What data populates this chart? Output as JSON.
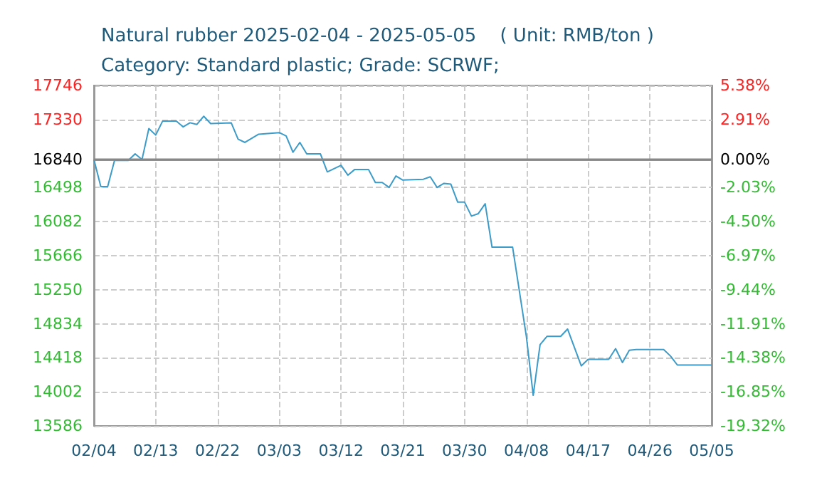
{
  "chart_data": {
    "type": "line",
    "title": "Natural rubber 2025-02-04 - 2025-05-05    ( Unit: RMB/ton )",
    "subtitle": "Category: Standard plastic; Grade: SCRWF;",
    "x": [
      "2025-02-04",
      "2025-02-05",
      "2025-02-06",
      "2025-02-07",
      "2025-02-09",
      "2025-02-10",
      "2025-02-11",
      "2025-02-12",
      "2025-02-13",
      "2025-02-14",
      "2025-02-16",
      "2025-02-17",
      "2025-02-18",
      "2025-02-19",
      "2025-02-20",
      "2025-02-21",
      "2025-02-24",
      "2025-02-25",
      "2025-02-26",
      "2025-02-28",
      "2025-03-03",
      "2025-03-04",
      "2025-03-05",
      "2025-03-06",
      "2025-03-07",
      "2025-03-09",
      "2025-03-10",
      "2025-03-12",
      "2025-03-13",
      "2025-03-14",
      "2025-03-16",
      "2025-03-17",
      "2025-03-18",
      "2025-03-19",
      "2025-03-20",
      "2025-03-21",
      "2025-03-24",
      "2025-03-25",
      "2025-03-26",
      "2025-03-27",
      "2025-03-28",
      "2025-03-29",
      "2025-03-30",
      "2025-03-31",
      "2025-04-01",
      "2025-04-02",
      "2025-04-03",
      "2025-04-06",
      "2025-04-08",
      "2025-04-09",
      "2025-04-10",
      "2025-04-11",
      "2025-04-13",
      "2025-04-14",
      "2025-04-16",
      "2025-04-17",
      "2025-04-20",
      "2025-04-21",
      "2025-04-22",
      "2025-04-23",
      "2025-04-24",
      "2025-04-28",
      "2025-04-29",
      "2025-04-30",
      "2025-05-05"
    ],
    "series": [
      {
        "color": "#3d9bc8",
        "values": [
          16840,
          16510,
          16510,
          16830,
          16830,
          16910,
          16840,
          17220,
          17140,
          17310,
          17310,
          17240,
          17290,
          17270,
          17370,
          17280,
          17290,
          17090,
          17050,
          17150,
          17170,
          17130,
          16930,
          17050,
          16910,
          16910,
          16690,
          16770,
          16650,
          16720,
          16720,
          16560,
          16560,
          16500,
          16640,
          16590,
          16600,
          16630,
          16500,
          16550,
          16540,
          16320,
          16320,
          16150,
          16180,
          16300,
          15770,
          15770,
          14680,
          13960,
          14580,
          14680,
          14680,
          14770,
          14320,
          14400,
          14400,
          14530,
          14360,
          14510,
          14520,
          14520,
          14440,
          14330,
          14330
        ]
      }
    ],
    "xlim": [
      "2025-02-04",
      "2025-05-05"
    ],
    "xticks": [
      {
        "value": "2025-02-04",
        "label": "02/04"
      },
      {
        "value": "2025-02-13",
        "label": "02/13"
      },
      {
        "value": "2025-02-22",
        "label": "02/22"
      },
      {
        "value": "2025-03-03",
        "label": "03/03"
      },
      {
        "value": "2025-03-12",
        "label": "03/12"
      },
      {
        "value": "2025-03-21",
        "label": "03/21"
      },
      {
        "value": "2025-03-30",
        "label": "03/30"
      },
      {
        "value": "2025-04-08",
        "label": "04/08"
      },
      {
        "value": "2025-04-17",
        "label": "04/17"
      },
      {
        "value": "2025-04-26",
        "label": "04/26"
      },
      {
        "value": "2025-05-05",
        "label": "05/05"
      }
    ],
    "ylim": [
      13586,
      17746
    ],
    "yticks": [
      13586,
      14002,
      14418,
      14834,
      15250,
      15666,
      16082,
      16498,
      16840,
      17330,
      17746
    ],
    "y2lim": [
      -19.32,
      5.38
    ],
    "y2ticks": [
      {
        "value": -19.32,
        "label": "-19.32%"
      },
      {
        "value": -16.85,
        "label": "-16.85%"
      },
      {
        "value": -14.38,
        "label": "-14.38%"
      },
      {
        "value": -11.91,
        "label": "-11.91%"
      },
      {
        "value": -9.44,
        "label": "-9.44%"
      },
      {
        "value": -6.97,
        "label": "-6.97%"
      },
      {
        "value": -4.5,
        "label": "-4.50%"
      },
      {
        "value": -2.03,
        "label": "-2.03%"
      },
      {
        "value": 0,
        "label": "0.00%"
      },
      {
        "value": 2.91,
        "label": "2.91%"
      },
      {
        "value": 5.38,
        "label": "5.38%"
      }
    ],
    "ref_lines": [
      {
        "axis": "y",
        "value": 16840,
        "color": "#888888"
      }
    ],
    "grid": true,
    "marker": "none",
    "line_style": "solid"
  }
}
